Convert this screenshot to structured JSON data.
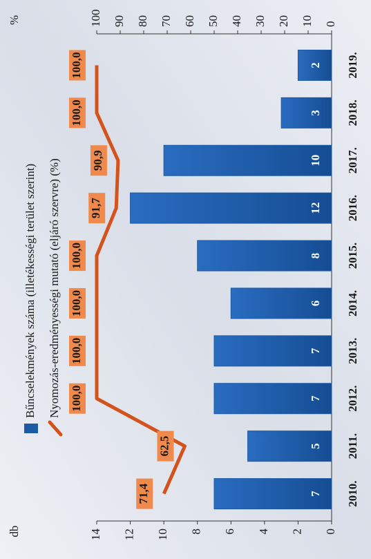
{
  "chart_data": {
    "type": "bar",
    "categories": [
      "2010.",
      "2011.",
      "2012.",
      "2013.",
      "2014.",
      "2015.",
      "2016.",
      "2017.",
      "2018.",
      "2019."
    ],
    "series": [
      {
        "name": "Bűncselekmények száma (illetékességi terület szerint)",
        "type": "bar",
        "color": "#1c5aa6",
        "values": [
          7,
          5,
          7,
          7,
          6,
          8,
          12,
          10,
          3,
          2
        ]
      },
      {
        "name": "Nyomozás-eredményességi mutató (eljáró szervre) (%)",
        "type": "line",
        "axis": "y2",
        "color": "#d4521c",
        "values": [
          71.4,
          62.5,
          100,
          100,
          100,
          100,
          91.7,
          90.9,
          100,
          100
        ],
        "value_labels": [
          "71,4",
          "62,5",
          "100,0",
          "100,0",
          "100,0",
          "100,0",
          "91,7",
          "90,9",
          "100,0",
          "100,0"
        ]
      }
    ],
    "ylabel": "db",
    "y2label": "%",
    "ylim": [
      0,
      14
    ],
    "yticks": [
      0,
      2,
      4,
      6,
      8,
      10,
      12,
      14
    ],
    "y2lim": [
      0,
      100
    ],
    "y2ticks": [
      0,
      10,
      20,
      30,
      40,
      50,
      60,
      70,
      80,
      90,
      100
    ]
  }
}
